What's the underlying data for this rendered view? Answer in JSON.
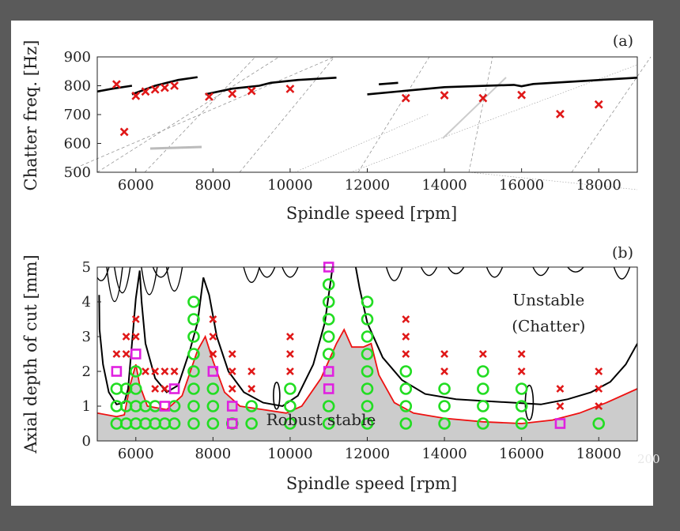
{
  "colors": {
    "background": "#5a5a5a",
    "frame": "#ffffff",
    "plot_bg": "#ffffff",
    "curve": "#000000",
    "chatter_marker": "#e01818",
    "stable_marker": "#22dd22",
    "marginal_marker": "#e020e0",
    "robust_line": "#ee1111",
    "robust_fill": "#cccccc"
  },
  "watermark": "200",
  "chart_data": [
    {
      "panel_label": "(a)",
      "type": "scatter",
      "xlabel": "Spindle speed [rpm]",
      "ylabel": "Chatter freq. [Hz]",
      "xlim": [
        5000,
        19000
      ],
      "ylim": [
        500,
        900
      ],
      "xticks": [
        6000,
        8000,
        10000,
        12000,
        14000,
        16000,
        18000
      ],
      "yticks": [
        500,
        600,
        700,
        800,
        900
      ],
      "series": [
        {
          "name": "measured chatter frequency",
          "marker": "x",
          "points": [
            [
              5500,
              805
            ],
            [
              5700,
              640
            ],
            [
              6000,
              765
            ],
            [
              6250,
              780
            ],
            [
              6500,
              787
            ],
            [
              6750,
              793
            ],
            [
              7000,
              800
            ],
            [
              7900,
              762
            ],
            [
              8500,
              772
            ],
            [
              9000,
              782
            ],
            [
              10000,
              789
            ],
            [
              13000,
              757
            ],
            [
              14000,
              767
            ],
            [
              15000,
              757
            ],
            [
              16000,
              768
            ],
            [
              17000,
              702
            ],
            [
              18000,
              735
            ]
          ]
        },
        {
          "name": "predicted chatter frequency",
          "type": "line",
          "segments": [
            [
              [
                5000,
                780
              ],
              [
                5400,
                790
              ],
              [
                5900,
                800
              ]
            ],
            [
              [
                5900,
                770
              ],
              [
                6500,
                800
              ],
              [
                7100,
                820
              ],
              [
                7600,
                830
              ]
            ],
            [
              [
                7800,
                770
              ],
              [
                8500,
                790
              ],
              [
                9200,
                800
              ],
              [
                9500,
                810
              ],
              [
                10200,
                820
              ],
              [
                11200,
                828
              ]
            ],
            [
              [
                12300,
                805
              ],
              [
                12800,
                810
              ]
            ],
            [
              [
                12000,
                770
              ],
              [
                14000,
                795
              ],
              [
                15800,
                803
              ],
              [
                16000,
                798
              ],
              [
                16300,
                806
              ],
              [
                19000,
                828
              ]
            ]
          ]
        }
      ]
    },
    {
      "panel_label": "(b)",
      "type": "scatter",
      "xlabel": "Spindle speed [rpm]",
      "ylabel": "Axial depth of cut [mm]",
      "xlim": [
        5000,
        19000
      ],
      "ylim": [
        0,
        5
      ],
      "xticks": [
        6000,
        8000,
        10000,
        12000,
        14000,
        16000,
        18000
      ],
      "yticks": [
        0,
        1,
        2,
        3,
        4,
        5
      ],
      "annotations": [
        {
          "text": "Unstable",
          "x": 16700,
          "y": 3.9
        },
        {
          "text": "(Chatter)",
          "x": 16700,
          "y": 3.15
        },
        {
          "text": "Robust stable",
          "x": 10800,
          "y": 0.45
        }
      ],
      "series": [
        {
          "name": "Robust stable",
          "type": "area",
          "points": [
            [
              5000,
              0.8
            ],
            [
              5500,
              0.7
            ],
            [
              5700,
              0.75
            ],
            [
              5850,
              1.6
            ],
            [
              6000,
              2.2
            ],
            [
              6100,
              1.6
            ],
            [
              6300,
              1.0
            ],
            [
              6800,
              0.9
            ],
            [
              7200,
              1.3
            ],
            [
              7600,
              2.6
            ],
            [
              7800,
              3.0
            ],
            [
              8000,
              2.3
            ],
            [
              8300,
              1.4
            ],
            [
              8700,
              1.0
            ],
            [
              9300,
              0.9
            ],
            [
              9900,
              0.8
            ],
            [
              10300,
              1.0
            ],
            [
              10800,
              1.8
            ],
            [
              11200,
              2.8
            ],
            [
              11400,
              3.2
            ],
            [
              11600,
              2.7
            ],
            [
              11900,
              2.7
            ],
            [
              12100,
              2.8
            ],
            [
              12300,
              1.9
            ],
            [
              12700,
              1.1
            ],
            [
              13200,
              0.8
            ],
            [
              14000,
              0.65
            ],
            [
              15000,
              0.55
            ],
            [
              16000,
              0.5
            ],
            [
              16800,
              0.6
            ],
            [
              17500,
              0.8
            ],
            [
              18200,
              1.1
            ],
            [
              19000,
              1.5
            ]
          ]
        },
        {
          "name": "stability lobe",
          "type": "line",
          "segments": [
            [
              [
                5050,
                4.2
              ],
              [
                5060,
                3.2
              ],
              [
                5150,
                2.2
              ],
              [
                5300,
                1.4
              ],
              [
                5500,
                1.05
              ],
              [
                5700,
                1.1
              ],
              [
                5800,
                1.5
              ],
              [
                5900,
                2.8
              ],
              [
                6000,
                4.1
              ],
              [
                6100,
                4.9
              ],
              [
                6150,
                4.0
              ],
              [
                6250,
                2.8
              ],
              [
                6500,
                1.8
              ],
              [
                6800,
                1.4
              ],
              [
                7100,
                1.6
              ],
              [
                7400,
                2.6
              ],
              [
                7600,
                3.4
              ],
              [
                7750,
                4.7
              ],
              [
                7900,
                4.2
              ],
              [
                8100,
                3.0
              ],
              [
                8400,
                2.0
              ],
              [
                8800,
                1.4
              ],
              [
                9300,
                1.1
              ],
              [
                9800,
                1.0
              ],
              [
                10200,
                1.3
              ],
              [
                10600,
                2.2
              ],
              [
                10900,
                3.4
              ],
              [
                11050,
                4.6
              ],
              [
                11100,
                5.0
              ]
            ],
            [
              [
                11700,
                5.0
              ],
              [
                11800,
                4.4
              ],
              [
                12000,
                3.4
              ],
              [
                12400,
                2.4
              ],
              [
                12900,
                1.75
              ],
              [
                13500,
                1.35
              ],
              [
                14300,
                1.2
              ],
              [
                15000,
                1.15
              ],
              [
                15800,
                1.1
              ],
              [
                16500,
                1.05
              ],
              [
                17200,
                1.2
              ],
              [
                17800,
                1.4
              ],
              [
                18300,
                1.7
              ],
              [
                18700,
                2.2
              ],
              [
                19000,
                2.8
              ]
            ]
          ]
        },
        {
          "name": "chatter",
          "marker": "x",
          "points": [
            [
              5500,
              2.5
            ],
            [
              5750,
              3.0
            ],
            [
              5750,
              2.5
            ],
            [
              6000,
              3.5
            ],
            [
              6000,
              3.0
            ],
            [
              6250,
              2.0
            ],
            [
              6500,
              2.0
            ],
            [
              6500,
              1.5
            ],
            [
              6750,
              2.0
            ],
            [
              6750,
              1.5
            ],
            [
              7000,
              2.0
            ],
            [
              8000,
              3.5
            ],
            [
              8000,
              3.0
            ],
            [
              8000,
              2.5
            ],
            [
              8500,
              2.5
            ],
            [
              8500,
              2.0
            ],
            [
              8500,
              1.5
            ],
            [
              9000,
              2.0
            ],
            [
              9000,
              1.5
            ],
            [
              10000,
              3.0
            ],
            [
              10000,
              2.5
            ],
            [
              10000,
              2.0
            ],
            [
              13000,
              3.5
            ],
            [
              13000,
              3.0
            ],
            [
              13000,
              2.5
            ],
            [
              14000,
              2.5
            ],
            [
              14000,
              2.0
            ],
            [
              15000,
              2.5
            ],
            [
              16000,
              2.5
            ],
            [
              16000,
              2.0
            ],
            [
              17000,
              1.5
            ],
            [
              17000,
              1.0
            ],
            [
              18000,
              2.0
            ],
            [
              18000,
              1.5
            ],
            [
              18000,
              1.0
            ]
          ]
        },
        {
          "name": "stable",
          "marker": "o",
          "points": [
            [
              5500,
              0.5
            ],
            [
              5500,
              1.0
            ],
            [
              5500,
              1.5
            ],
            [
              5750,
              0.5
            ],
            [
              5750,
              1.0
            ],
            [
              5750,
              1.5
            ],
            [
              6000,
              0.5
            ],
            [
              6000,
              1.0
            ],
            [
              6000,
              1.5
            ],
            [
              6000,
              2.0
            ],
            [
              6250,
              0.5
            ],
            [
              6250,
              1.0
            ],
            [
              6500,
              0.5
            ],
            [
              6500,
              1.0
            ],
            [
              6750,
              0.5
            ],
            [
              7000,
              0.5
            ],
            [
              7000,
              1.0
            ],
            [
              7500,
              0.5
            ],
            [
              7500,
              1.0
            ],
            [
              7500,
              1.5
            ],
            [
              7500,
              2.0
            ],
            [
              7500,
              2.5
            ],
            [
              7500,
              3.0
            ],
            [
              7500,
              3.5
            ],
            [
              7500,
              4.0
            ],
            [
              8000,
              0.5
            ],
            [
              8000,
              1.0
            ],
            [
              8000,
              1.5
            ],
            [
              8500,
              0.5
            ],
            [
              9000,
              0.5
            ],
            [
              9000,
              1.0
            ],
            [
              10000,
              0.5
            ],
            [
              10000,
              1.0
            ],
            [
              10000,
              1.5
            ],
            [
              11000,
              0.5
            ],
            [
              11000,
              1.0
            ],
            [
              11000,
              2.5
            ],
            [
              11000,
              3.0
            ],
            [
              11000,
              3.5
            ],
            [
              11000,
              4.0
            ],
            [
              11000,
              4.5
            ],
            [
              12000,
              0.5
            ],
            [
              12000,
              1.0
            ],
            [
              12000,
              1.5
            ],
            [
              12000,
              2.0
            ],
            [
              12000,
              2.5
            ],
            [
              12000,
              3.0
            ],
            [
              12000,
              3.5
            ],
            [
              12000,
              4.0
            ],
            [
              13000,
              0.5
            ],
            [
              13000,
              1.0
            ],
            [
              13000,
              1.5
            ],
            [
              13000,
              2.0
            ],
            [
              14000,
              0.5
            ],
            [
              14000,
              1.0
            ],
            [
              14000,
              1.5
            ],
            [
              15000,
              0.5
            ],
            [
              15000,
              1.0
            ],
            [
              15000,
              1.5
            ],
            [
              15000,
              2.0
            ],
            [
              16000,
              0.5
            ],
            [
              16000,
              1.0
            ],
            [
              16000,
              1.5
            ],
            [
              18000,
              0.5
            ]
          ]
        },
        {
          "name": "marginal",
          "marker": "square",
          "points": [
            [
              5500,
              2.0
            ],
            [
              6000,
              2.5
            ],
            [
              6750,
              1.0
            ],
            [
              7000,
              1.5
            ],
            [
              8000,
              2.0
            ],
            [
              8500,
              1.0
            ],
            [
              8500,
              0.5
            ],
            [
              11000,
              5.0
            ],
            [
              11000,
              2.0
            ],
            [
              11000,
              1.5
            ],
            [
              17000,
              0.5
            ]
          ]
        }
      ]
    }
  ]
}
